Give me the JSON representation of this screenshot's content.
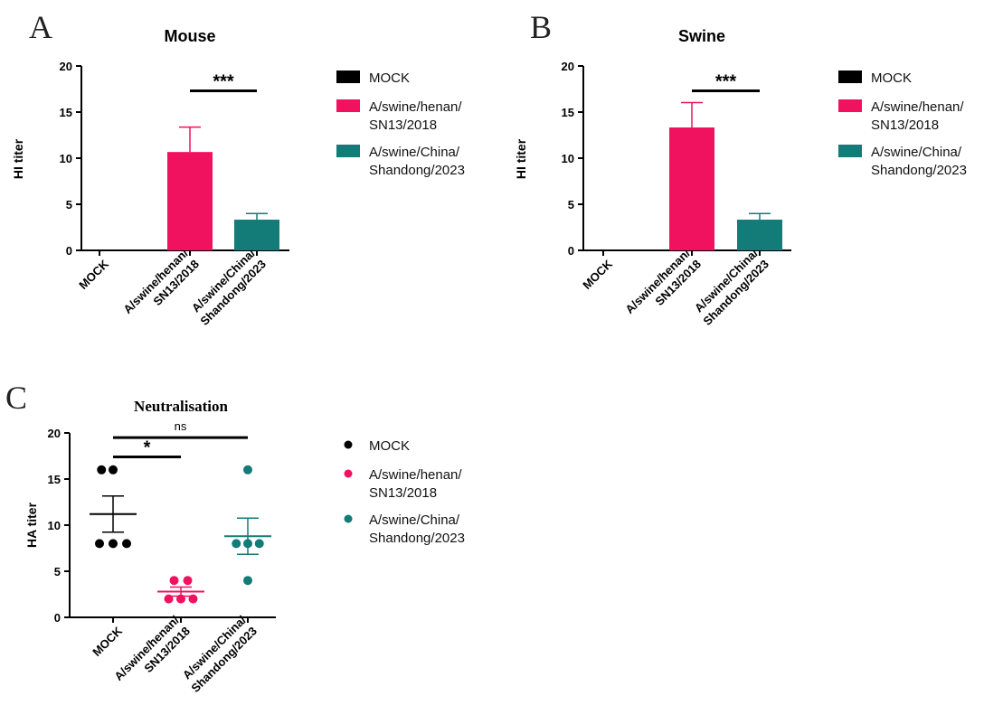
{
  "colors": {
    "mock": "#000000",
    "henan": "#f0125e",
    "china": "#137b78",
    "axis": "#000000"
  },
  "chart_data": [
    {
      "panel": "A",
      "type": "bar",
      "title": "Mouse",
      "ylabel": "HI titer",
      "xlabel": "",
      "ylim": [
        0,
        20
      ],
      "yticks": [
        0,
        5,
        10,
        15,
        20
      ],
      "categories": [
        "MOCK",
        "A/swine/henan/SN13/2018",
        "A/swine/China/Shandong/2023"
      ],
      "category_lines": [
        [
          "MOCK"
        ],
        [
          "A/swine/henan/",
          "SN13/2018"
        ],
        [
          "A/swine/China/",
          "Shandong/2023"
        ]
      ],
      "values": [
        0,
        10.67,
        3.33
      ],
      "errors": [
        0,
        2.7,
        0.67
      ],
      "legend": [
        {
          "lines": [
            "MOCK"
          ],
          "color": "#000000"
        },
        {
          "lines": [
            "A/swine/henan/",
            "SN13/2018"
          ],
          "color": "#f0125e"
        },
        {
          "lines": [
            "A/swine/China/",
            "Shandong/2023"
          ],
          "color": "#137b78"
        }
      ],
      "significance": [
        {
          "from": 1,
          "to": 2,
          "label": "***",
          "y": 17.3
        }
      ]
    },
    {
      "panel": "B",
      "type": "bar",
      "title": "Swine",
      "ylabel": "HI titer",
      "xlabel": "",
      "ylim": [
        0,
        20
      ],
      "yticks": [
        0,
        5,
        10,
        15,
        20
      ],
      "categories": [
        "MOCK",
        "A/swine/henan/SN13/2018",
        "A/swine/China/Shandong/2023"
      ],
      "category_lines": [
        [
          "MOCK"
        ],
        [
          "A/swine/henan/",
          "SN13/2018"
        ],
        [
          "A/swine/China/",
          "Shandong/2023"
        ]
      ],
      "values": [
        0,
        13.33,
        3.33
      ],
      "errors": [
        0,
        2.7,
        0.67
      ],
      "legend": [
        {
          "lines": [
            "MOCK"
          ],
          "color": "#000000"
        },
        {
          "lines": [
            "A/swine/henan/",
            "SN13/2018"
          ],
          "color": "#f0125e"
        },
        {
          "lines": [
            "A/swine/China/",
            "Shandong/2023"
          ],
          "color": "#137b78"
        }
      ],
      "significance": [
        {
          "from": 1,
          "to": 2,
          "label": "***",
          "y": 17.3
        }
      ]
    },
    {
      "panel": "C",
      "type": "scatter",
      "title": "Neutralisation",
      "ylabel": "HA titer",
      "xlabel": "",
      "ylim": [
        0,
        20
      ],
      "yticks": [
        0,
        5,
        10,
        15,
        20
      ],
      "categories": [
        "MOCK",
        "A/swine/henan/SN13/2018",
        "A/swine/China/Shandong/2023"
      ],
      "category_lines": [
        [
          "MOCK"
        ],
        [
          "A/swine/henan/",
          "SN13/2018"
        ],
        [
          "A/swine/China/",
          "Shandong/2023"
        ]
      ],
      "points": [
        [
          16,
          16,
          8,
          8,
          8
        ],
        [
          4,
          4,
          2,
          2,
          2
        ],
        [
          16,
          8,
          8,
          8,
          4
        ]
      ],
      "point_offsets": [
        [
          -0.17,
          0.0,
          -0.2,
          0.0,
          0.2
        ],
        [
          -0.1,
          0.1,
          -0.18,
          0.0,
          0.18
        ],
        [
          0.0,
          -0.17,
          0.0,
          0.17,
          0.0
        ]
      ],
      "means": [
        11.2,
        2.8,
        8.8
      ],
      "sem": [
        1.96,
        0.49,
        1.96
      ],
      "legend": [
        {
          "lines": [
            "MOCK"
          ],
          "color": "#000000"
        },
        {
          "lines": [
            "A/swine/henan/",
            "SN13/2018"
          ],
          "color": "#f0125e"
        },
        {
          "lines": [
            "A/swine/China/",
            "Shandong/2023"
          ],
          "color": "#137b78"
        }
      ],
      "significance": [
        {
          "from": 0,
          "to": 1,
          "label": "*",
          "y": 17.4
        },
        {
          "from": 0,
          "to": 2,
          "label": "ns",
          "y": 19.5
        }
      ]
    }
  ]
}
